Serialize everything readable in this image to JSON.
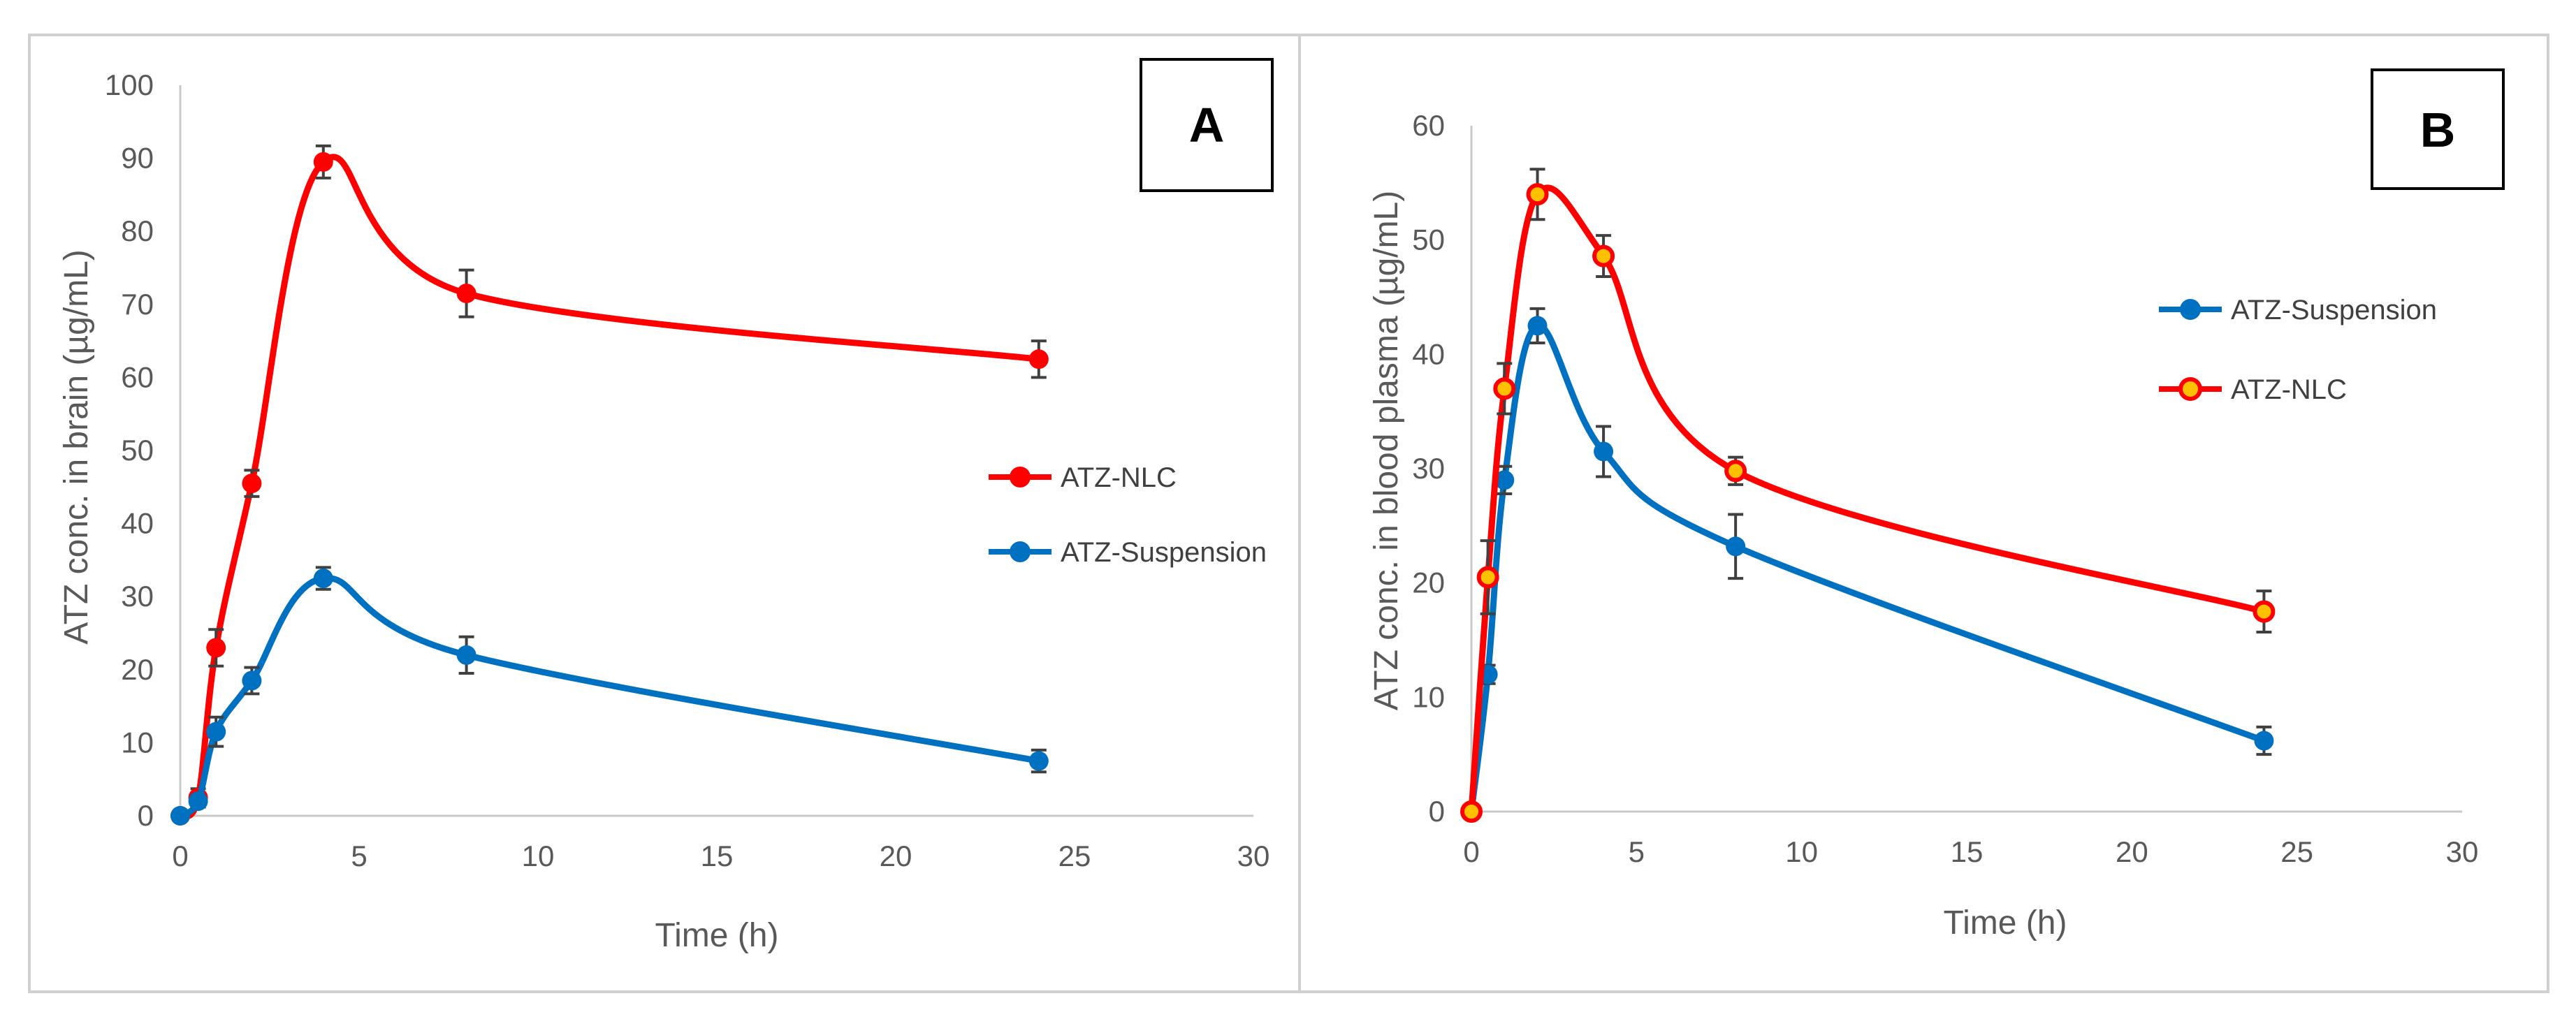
{
  "chart_data": [
    {
      "type": "line",
      "panel_label": "A",
      "xlabel": "Time (h)",
      "ylabel": "ATZ conc. in brain (µg/mL)",
      "xlim": [
        0,
        30
      ],
      "ylim": [
        0,
        100
      ],
      "x_ticks": [
        "0",
        "5",
        "10",
        "15",
        "20",
        "25",
        "30"
      ],
      "y_ticks": [
        "0",
        "10",
        "20",
        "30",
        "40",
        "50",
        "60",
        "70",
        "80",
        "90",
        "100"
      ],
      "legend_position": "right",
      "series": [
        {
          "name": "ATZ-NLC",
          "color": "#ff0000",
          "marker_fill": "#ff0000",
          "x": [
            0,
            0.5,
            1,
            2,
            4,
            8,
            24
          ],
          "y": [
            0,
            2.5,
            23,
            45.5,
            89.5,
            71.5,
            62.5
          ],
          "error": [
            0,
            1.2,
            2.5,
            1.8,
            2.2,
            3.2,
            2.5
          ]
        },
        {
          "name": "ATZ-Suspension",
          "color": "#0070c0",
          "marker_fill": "#0070c0",
          "x": [
            0,
            0.5,
            1,
            2,
            4,
            8,
            24
          ],
          "y": [
            0,
            2,
            11.5,
            18.5,
            32.5,
            22,
            7.5
          ],
          "error": [
            0,
            0.8,
            2,
            1.8,
            1.5,
            2.5,
            1.5
          ]
        }
      ]
    },
    {
      "type": "line",
      "panel_label": "B",
      "xlabel": "Time (h)",
      "ylabel": "ATZ conc. in blood plasma (µg/mL)",
      "xlim": [
        0,
        30
      ],
      "ylim": [
        0,
        60
      ],
      "x_ticks": [
        "0",
        "5",
        "10",
        "15",
        "20",
        "25",
        "30"
      ],
      "y_ticks": [
        "0",
        "10",
        "20",
        "30",
        "40",
        "50",
        "60"
      ],
      "legend_position": "right",
      "series": [
        {
          "name": "ATZ-Suspension",
          "color": "#0070c0",
          "marker_fill": "#0070c0",
          "x": [
            0,
            0.5,
            1,
            2,
            4,
            8,
            24
          ],
          "y": [
            0,
            12,
            29,
            42.5,
            31.5,
            23.2,
            6.2
          ],
          "error": [
            0,
            0.8,
            1.2,
            1.5,
            2.2,
            2.8,
            1.2
          ]
        },
        {
          "name": "ATZ-NLC",
          "color": "#ff0000",
          "marker_fill": "#ffc000",
          "x": [
            0,
            0.5,
            1,
            2,
            4,
            8,
            24
          ],
          "y": [
            0,
            20.5,
            37,
            54,
            48.6,
            29.8,
            17.5
          ],
          "error": [
            0,
            3.2,
            2.2,
            2.2,
            1.8,
            1.2,
            1.8
          ]
        }
      ]
    }
  ]
}
